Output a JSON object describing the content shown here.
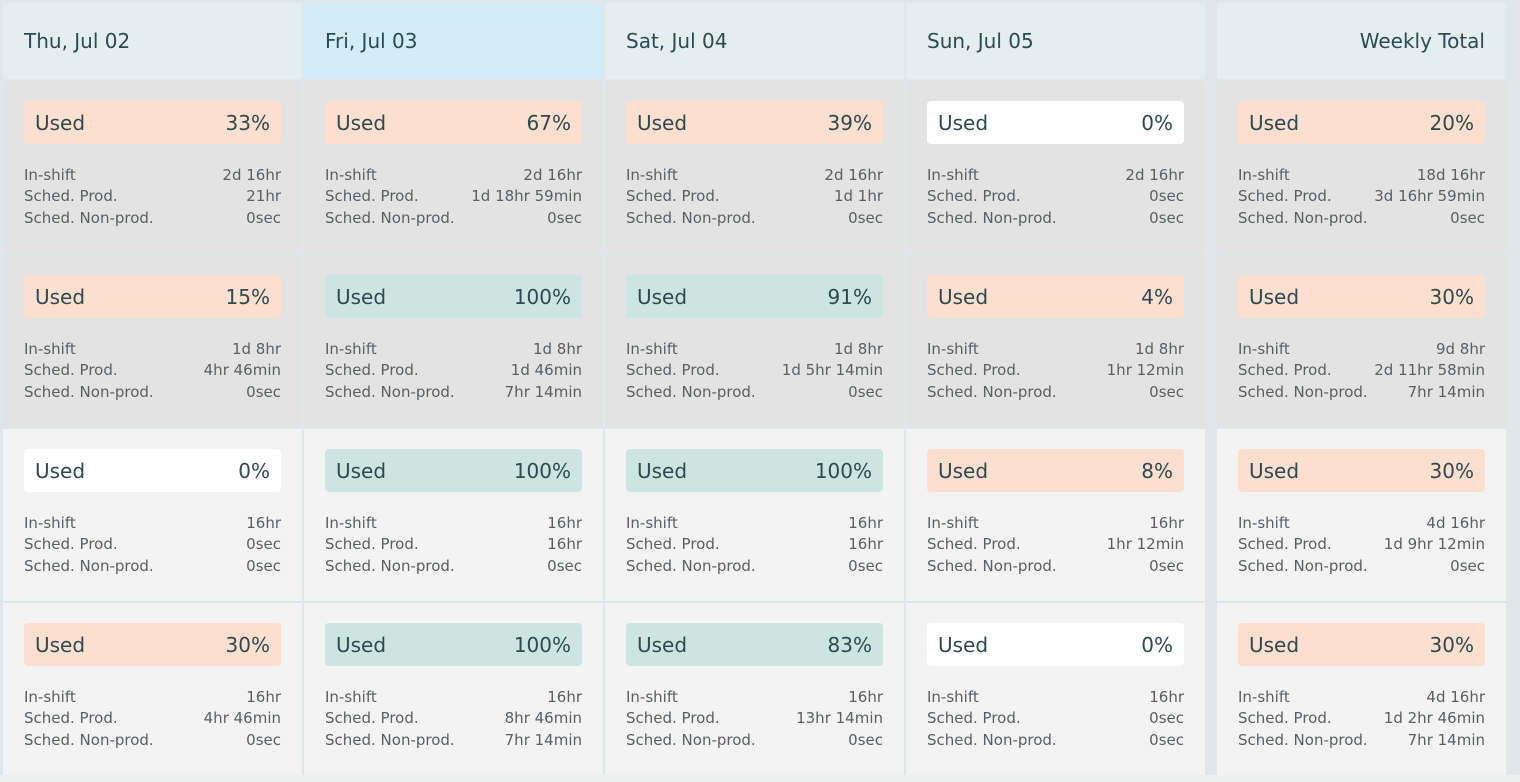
{
  "columns": [
    {
      "title": "Thu, Jul 02"
    },
    {
      "title": "Fri, Jul 03"
    },
    {
      "title": "Sat, Jul 04"
    },
    {
      "title": "Sun, Jul 05"
    },
    {
      "title": "Weekly Total"
    }
  ],
  "stat_labels": {
    "in_shift": "In-shift",
    "sched_prod": "Sched. Prod.",
    "sched_nonprod": "Sched. Non-prod."
  },
  "used_label": "Used",
  "colors": {
    "orange": "#fddfcf",
    "teal": "#cce5e1",
    "white": "#ffffff",
    "selected_header": "#d4ecf7"
  },
  "rows": [
    {
      "cells": [
        {
          "used_pct": "33%",
          "color": "orange",
          "in_shift": "2d 16hr",
          "sched_prod": "21hr",
          "sched_nonprod": "0sec"
        },
        {
          "used_pct": "67%",
          "color": "orange",
          "in_shift": "2d 16hr",
          "sched_prod": "1d 18hr 59min",
          "sched_nonprod": "0sec"
        },
        {
          "used_pct": "39%",
          "color": "orange",
          "in_shift": "2d 16hr",
          "sched_prod": "1d 1hr",
          "sched_nonprod": "0sec"
        },
        {
          "used_pct": "0%",
          "color": "white",
          "in_shift": "2d 16hr",
          "sched_prod": "0sec",
          "sched_nonprod": "0sec"
        },
        {
          "used_pct": "20%",
          "color": "orange",
          "in_shift": "18d 16hr",
          "sched_prod": "3d 16hr 59min",
          "sched_nonprod": "0sec"
        }
      ]
    },
    {
      "cells": [
        {
          "used_pct": "15%",
          "color": "orange",
          "in_shift": "1d 8hr",
          "sched_prod": "4hr 46min",
          "sched_nonprod": "0sec"
        },
        {
          "used_pct": "100%",
          "color": "teal",
          "in_shift": "1d 8hr",
          "sched_prod": "1d 46min",
          "sched_nonprod": "7hr 14min"
        },
        {
          "used_pct": "91%",
          "color": "teal",
          "in_shift": "1d 8hr",
          "sched_prod": "1d 5hr 14min",
          "sched_nonprod": "0sec"
        },
        {
          "used_pct": "4%",
          "color": "orange",
          "in_shift": "1d 8hr",
          "sched_prod": "1hr 12min",
          "sched_nonprod": "0sec"
        },
        {
          "used_pct": "30%",
          "color": "orange",
          "in_shift": "9d 8hr",
          "sched_prod": "2d 11hr 58min",
          "sched_nonprod": "7hr 14min"
        }
      ]
    },
    {
      "cells": [
        {
          "used_pct": "0%",
          "color": "white",
          "in_shift": "16hr",
          "sched_prod": "0sec",
          "sched_nonprod": "0sec"
        },
        {
          "used_pct": "100%",
          "color": "teal",
          "in_shift": "16hr",
          "sched_prod": "16hr",
          "sched_nonprod": "0sec"
        },
        {
          "used_pct": "100%",
          "color": "teal",
          "in_shift": "16hr",
          "sched_prod": "16hr",
          "sched_nonprod": "0sec"
        },
        {
          "used_pct": "8%",
          "color": "orange",
          "in_shift": "16hr",
          "sched_prod": "1hr 12min",
          "sched_nonprod": "0sec"
        },
        {
          "used_pct": "30%",
          "color": "orange",
          "in_shift": "4d 16hr",
          "sched_prod": "1d 9hr 12min",
          "sched_nonprod": "0sec"
        }
      ]
    },
    {
      "cells": [
        {
          "used_pct": "30%",
          "color": "orange",
          "in_shift": "16hr",
          "sched_prod": "4hr 46min",
          "sched_nonprod": "0sec"
        },
        {
          "used_pct": "100%",
          "color": "teal",
          "in_shift": "16hr",
          "sched_prod": "8hr 46min",
          "sched_nonprod": "7hr 14min"
        },
        {
          "used_pct": "83%",
          "color": "teal",
          "in_shift": "16hr",
          "sched_prod": "13hr 14min",
          "sched_nonprod": "0sec"
        },
        {
          "used_pct": "0%",
          "color": "white",
          "in_shift": "16hr",
          "sched_prod": "0sec",
          "sched_nonprod": "0sec"
        },
        {
          "used_pct": "30%",
          "color": "orange",
          "in_shift": "4d 16hr",
          "sched_prod": "1d 2hr 46min",
          "sched_nonprod": "7hr 14min"
        }
      ]
    }
  ]
}
